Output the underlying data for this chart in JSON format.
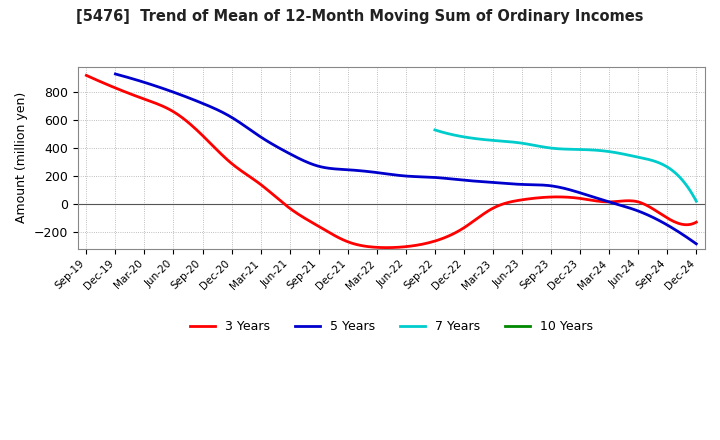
{
  "title": "[5476]  Trend of Mean of 12-Month Moving Sum of Ordinary Incomes",
  "ylabel": "Amount (million yen)",
  "ylim": [
    -320,
    980
  ],
  "yticks": [
    -200,
    0,
    200,
    400,
    600,
    800
  ],
  "background_color": "#ffffff",
  "plot_bg_color": "#ffffff",
  "grid_color": "#aaaaaa",
  "x_labels": [
    "Sep-19",
    "Dec-19",
    "Mar-20",
    "Jun-20",
    "Sep-20",
    "Dec-20",
    "Mar-21",
    "Jun-21",
    "Sep-21",
    "Dec-21",
    "Mar-22",
    "Jun-22",
    "Sep-22",
    "Dec-22",
    "Mar-23",
    "Jun-23",
    "Sep-23",
    "Dec-23",
    "Mar-24",
    "Jun-24",
    "Sep-24",
    "Dec-24"
  ],
  "series": [
    {
      "name": "3 Years",
      "color": "#ff0000",
      "values": [
        920,
        830,
        750,
        660,
        490,
        290,
        140,
        -30,
        -160,
        -270,
        -310,
        -305,
        -265,
        -170,
        -30,
        30,
        50,
        40,
        15,
        15,
        -100,
        -130
      ]
    },
    {
      "name": "5 Years",
      "color": "#0000cc",
      "values": [
        null,
        930,
        870,
        800,
        720,
        620,
        480,
        360,
        270,
        245,
        225,
        200,
        190,
        170,
        155,
        140,
        130,
        80,
        15,
        -50,
        -150,
        -285
      ]
    },
    {
      "name": "7 Years",
      "color": "#00cccc",
      "values": [
        null,
        null,
        null,
        null,
        null,
        null,
        null,
        null,
        null,
        null,
        null,
        null,
        530,
        480,
        455,
        435,
        400,
        390,
        375,
        335,
        265,
        20
      ]
    },
    {
      "name": "10 Years",
      "color": "#008800",
      "values": [
        null,
        null,
        null,
        null,
        null,
        null,
        null,
        null,
        null,
        null,
        null,
        null,
        null,
        null,
        null,
        null,
        null,
        null,
        null,
        null,
        null,
        null
      ]
    }
  ]
}
